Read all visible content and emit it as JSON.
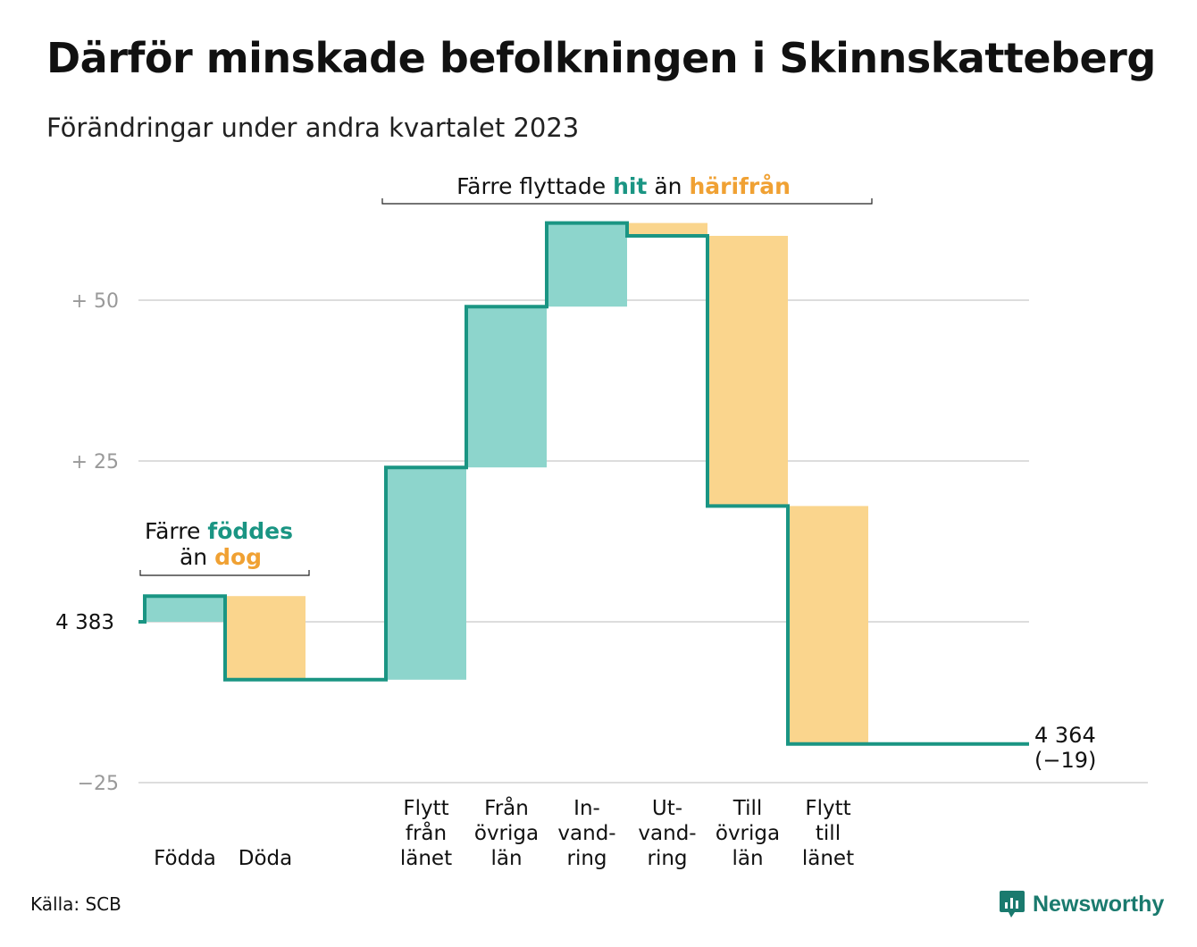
{
  "header": {
    "title": "Därför minskade befolkningen i Skinnskatteberg",
    "subtitle": "Förändringar under andra kvartalet 2023"
  },
  "footer": {
    "source": "Källa: SCB",
    "brand": "Newsworthy"
  },
  "colors": {
    "increase": "#8dd5cc",
    "decrease": "#fad58d",
    "line": "#1a9583",
    "increase_text": "#1a9583",
    "decrease_text": "#f0a133",
    "grid": "#dddddd",
    "tick_text": "#999999"
  },
  "chart_data": {
    "type": "waterfall",
    "start_value": 4383,
    "end_value": 4364,
    "end_change": "(−19)",
    "start_label": "4  383",
    "end_label": "4 364",
    "y_ticks": [
      {
        "value": 50,
        "label": "+  50"
      },
      {
        "value": 25,
        "label": "+  25"
      },
      {
        "value": -25,
        "label": "−25"
      }
    ],
    "ylim": [
      -25,
      62
    ],
    "grid": true,
    "steps": [
      {
        "label": [
          "Födda"
        ],
        "change": 4
      },
      {
        "label": [
          "Döda"
        ],
        "change": -13
      },
      {
        "label": [],
        "change": 0
      },
      {
        "label": [
          "Flytt",
          "från",
          "länet"
        ],
        "change": 33
      },
      {
        "label": [
          "Från",
          "övriga",
          "län"
        ],
        "change": 25
      },
      {
        "label": [
          "In-",
          "vand-",
          "ring"
        ],
        "change": 13
      },
      {
        "label": [
          "Ut-",
          "vand-",
          "ring"
        ],
        "change": -2
      },
      {
        "label": [
          "Till",
          "övriga",
          "län"
        ],
        "change": -42
      },
      {
        "label": [
          "Flytt",
          "till",
          "länet"
        ],
        "change": -37
      }
    ],
    "annotations": {
      "birth": {
        "line1_prefix": "Färre",
        "line1_highlight": "föddes",
        "line2_prefix": "än",
        "line2_highlight": "dog"
      },
      "migration": {
        "prefix": "Färre flyttade",
        "highlight1": "hit",
        "middle": "än",
        "highlight2": "härifrån"
      }
    }
  }
}
